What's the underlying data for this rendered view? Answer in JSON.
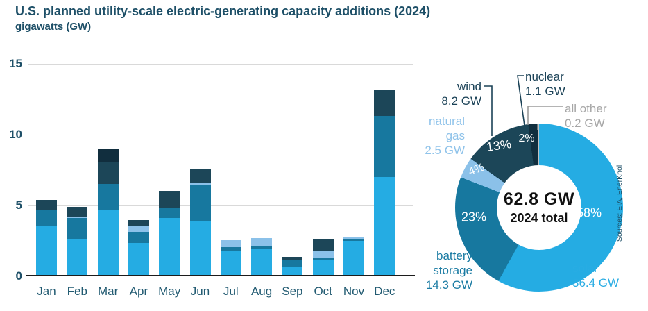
{
  "source": "Sources: EIA, EnerKnol",
  "chart_data": [
    {
      "type": "stacked_bar",
      "title": "U.S. planned utility-scale electric-generating capacity additions (2024)",
      "units": "gigawatts (GW)",
      "categories": [
        "Jan",
        "Feb",
        "Mar",
        "Apr",
        "May",
        "Jun",
        "Jul",
        "Aug",
        "Sep",
        "Oct",
        "Nov",
        "Dec"
      ],
      "ylim": [
        0,
        15
      ],
      "yticks": [
        0,
        5,
        10,
        15
      ],
      "grid": "horizontal",
      "series": [
        {
          "name": "solar",
          "color": "#25ace3",
          "values": [
            3.6,
            2.6,
            4.65,
            2.35,
            4.1,
            3.9,
            1.8,
            1.95,
            0.65,
            1.2,
            2.5,
            7.0
          ]
        },
        {
          "name": "battery storage",
          "color": "#17789f",
          "values": [
            1.1,
            1.5,
            1.85,
            0.8,
            0.7,
            2.5,
            0.25,
            0.15,
            0.55,
            0.1,
            0.15,
            4.3
          ]
        },
        {
          "name": "natural gas",
          "color": "#8bc1e9",
          "values": [
            0,
            0.1,
            0,
            0.4,
            0,
            0.15,
            0.5,
            0.6,
            0,
            0.45,
            0.1,
            0
          ]
        },
        {
          "name": "wind",
          "color": "#1c4658",
          "values": [
            0.7,
            0.7,
            1.55,
            0.4,
            1.25,
            1.05,
            0,
            0,
            0.15,
            0.85,
            0,
            1.9
          ]
        },
        {
          "name": "nuclear",
          "color": "#112e3e",
          "values": [
            0,
            0,
            0.95,
            0,
            0,
            0,
            0,
            0,
            0,
            0,
            0,
            0
          ]
        }
      ]
    },
    {
      "type": "donut",
      "center_value": "62.8 GW",
      "center_label": "2024 total",
      "slices": [
        {
          "name": "solar",
          "gw": 36.4,
          "pct": "58%",
          "color": "#25ace3",
          "label_lines": [
            "solar"
          ],
          "label_value": "36.4 GW"
        },
        {
          "name": "battery storage",
          "gw": 14.3,
          "pct": "23%",
          "color": "#17789f",
          "label_lines": [
            "battery",
            "storage"
          ],
          "label_value": "14.3 GW"
        },
        {
          "name": "natural gas",
          "gw": 2.5,
          "pct": "4%",
          "color": "#8bc1e9",
          "label_lines": [
            "natural",
            "gas"
          ],
          "label_value": "2.5 GW"
        },
        {
          "name": "wind",
          "gw": 8.2,
          "pct": "13%",
          "color": "#1c4658",
          "label_lines": [
            "wind"
          ],
          "label_value": "8.2 GW"
        },
        {
          "name": "nuclear",
          "gw": 1.1,
          "pct": "2%",
          "color": "#112e3e",
          "label_lines": [
            "nuclear"
          ],
          "label_value": "1.1 GW"
        },
        {
          "name": "all other",
          "gw": 0.2,
          "pct": "",
          "color": "#c2c2c2",
          "label_lines": [
            "all other"
          ],
          "label_value": "0.2 GW"
        }
      ]
    }
  ]
}
